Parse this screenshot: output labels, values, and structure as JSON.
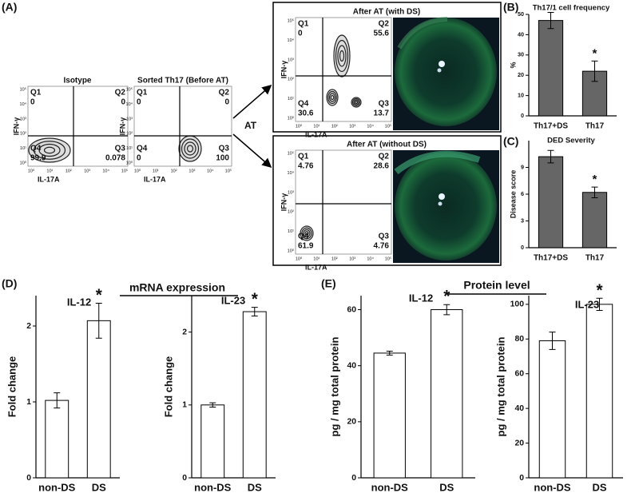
{
  "figure": {
    "panels": [
      "(A)",
      "(B)",
      "(C)",
      "(D)",
      "(E)"
    ],
    "arrow_label": "AT",
    "flow_axis_labels": {
      "y": "IFN-γ",
      "x": "IL-17A"
    },
    "flow_ticks": [
      "10⁰",
      "10¹",
      "10²",
      "10³",
      "10⁴",
      "10⁵"
    ],
    "flow_plots": [
      {
        "title": "Isotype",
        "quadrants": [
          {
            "name": "Q1",
            "value": 0
          },
          {
            "name": "Q2",
            "value": 0
          },
          {
            "name": "Q3",
            "value": 0.078
          },
          {
            "name": "Q4",
            "value": 99.9
          }
        ]
      },
      {
        "title": "Sorted Th17 (Before AT)",
        "quadrants": [
          {
            "name": "Q1",
            "value": 0
          },
          {
            "name": "Q2",
            "value": 0
          },
          {
            "name": "Q3",
            "value": 100
          },
          {
            "name": "Q4",
            "value": 0
          }
        ]
      },
      {
        "title": "After AT (with DS)",
        "quadrants": [
          {
            "name": "Q1",
            "value": 0
          },
          {
            "name": "Q2",
            "value": 55.6
          },
          {
            "name": "Q3",
            "value": 13.7
          },
          {
            "name": "Q4",
            "value": 30.6
          }
        ]
      },
      {
        "title": "After AT (without DS)",
        "quadrants": [
          {
            "name": "Q1",
            "value": 4.76
          },
          {
            "name": "Q2",
            "value": 28.6
          },
          {
            "name": "Q3",
            "value": 4.76
          },
          {
            "name": "Q4",
            "value": 61.9
          }
        ]
      }
    ],
    "group_titles": [
      "mRNA expression",
      "Protein level"
    ]
  },
  "chart_data": [
    {
      "type": "bar",
      "title": "Th17/1 cell frequency",
      "y_label": "%",
      "categories": [
        "Th17+DS",
        "Th17"
      ],
      "values": [
        47,
        22
      ],
      "errors": [
        4,
        5
      ],
      "annotation": "*",
      "color": "#666666",
      "ylim": [
        0,
        50
      ],
      "yticks": [
        0,
        10,
        20,
        30,
        40,
        50
      ]
    },
    {
      "type": "bar",
      "title": "DED Severity",
      "y_label": "Disease score",
      "categories": [
        "Th17+DS",
        "Th17"
      ],
      "values": [
        10.2,
        6.2
      ],
      "errors": [
        0.7,
        0.6
      ],
      "annotation": "*",
      "color": "#666666",
      "ylim": [
        0,
        12
      ],
      "yticks": [
        0,
        3,
        6,
        9
      ]
    },
    {
      "type": "bar",
      "title": "IL-12",
      "y_label": "Fold change",
      "categories": [
        "non-DS",
        "DS"
      ],
      "values": [
        1.02,
        2.07
      ],
      "errors": [
        0.1,
        0.23
      ],
      "annotation": "*",
      "color": "#ffffff",
      "ylim": [
        0,
        2.4
      ],
      "yticks": [
        0,
        1,
        2
      ]
    },
    {
      "type": "bar",
      "title": "IL-23",
      "y_label": "Fold change",
      "categories": [
        "non-DS",
        "DS"
      ],
      "values": [
        1.0,
        2.28
      ],
      "errors": [
        0.03,
        0.06
      ],
      "annotation": "*",
      "color": "#ffffff",
      "ylim": [
        0,
        2.5
      ],
      "yticks": [
        0,
        1,
        2
      ]
    },
    {
      "type": "bar",
      "title": "IL-12",
      "y_label": "pg / mg total protein",
      "categories": [
        "non-DS",
        "DS"
      ],
      "values": [
        44.5,
        60
      ],
      "errors": [
        0.7,
        1.8
      ],
      "annotation": "*",
      "color": "#ffffff",
      "ylim": [
        0,
        65
      ],
      "yticks": [
        0,
        20,
        40,
        60
      ]
    },
    {
      "type": "bar",
      "title": "IL-23",
      "y_label": "pg / mg total protein",
      "categories": [
        "non-DS",
        "DS"
      ],
      "values": [
        79,
        100
      ],
      "errors": [
        5,
        3.5
      ],
      "annotation": "*",
      "color": "#ffffff",
      "ylim": [
        0,
        105
      ],
      "yticks": [
        0,
        20,
        40,
        60,
        80,
        100
      ]
    }
  ]
}
